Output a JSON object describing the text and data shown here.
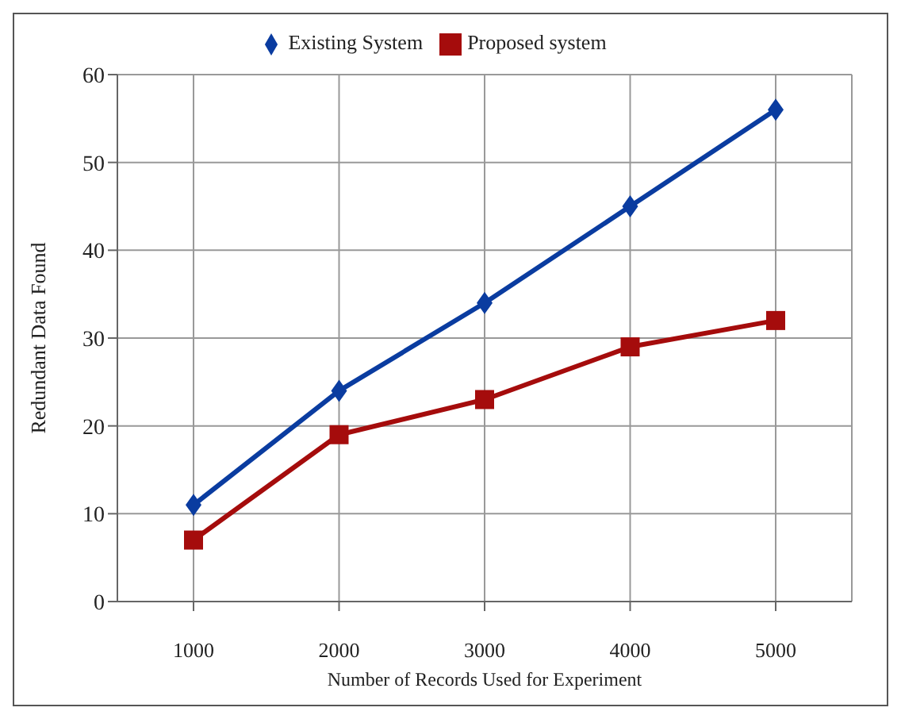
{
  "chart_data": {
    "type": "line",
    "xlabel": "Number of Records  Used for Experiment",
    "ylabel": "Redundant Data Found",
    "categories": [
      "1000",
      "2000",
      "3000",
      "4000",
      "5000"
    ],
    "series": [
      {
        "name": "Existing System",
        "color": "#0a3ca0",
        "marker": "diamond",
        "values": [
          11,
          24,
          34,
          45,
          56
        ]
      },
      {
        "name": "Proposed system",
        "color": "#a50c0c",
        "marker": "square",
        "values": [
          7,
          19,
          23,
          29,
          32
        ]
      }
    ],
    "ylim": [
      0,
      60
    ],
    "yticks": [
      0,
      10,
      20,
      30,
      40,
      50,
      60
    ],
    "grid": true,
    "legend": "top",
    "line_style": "solid"
  }
}
